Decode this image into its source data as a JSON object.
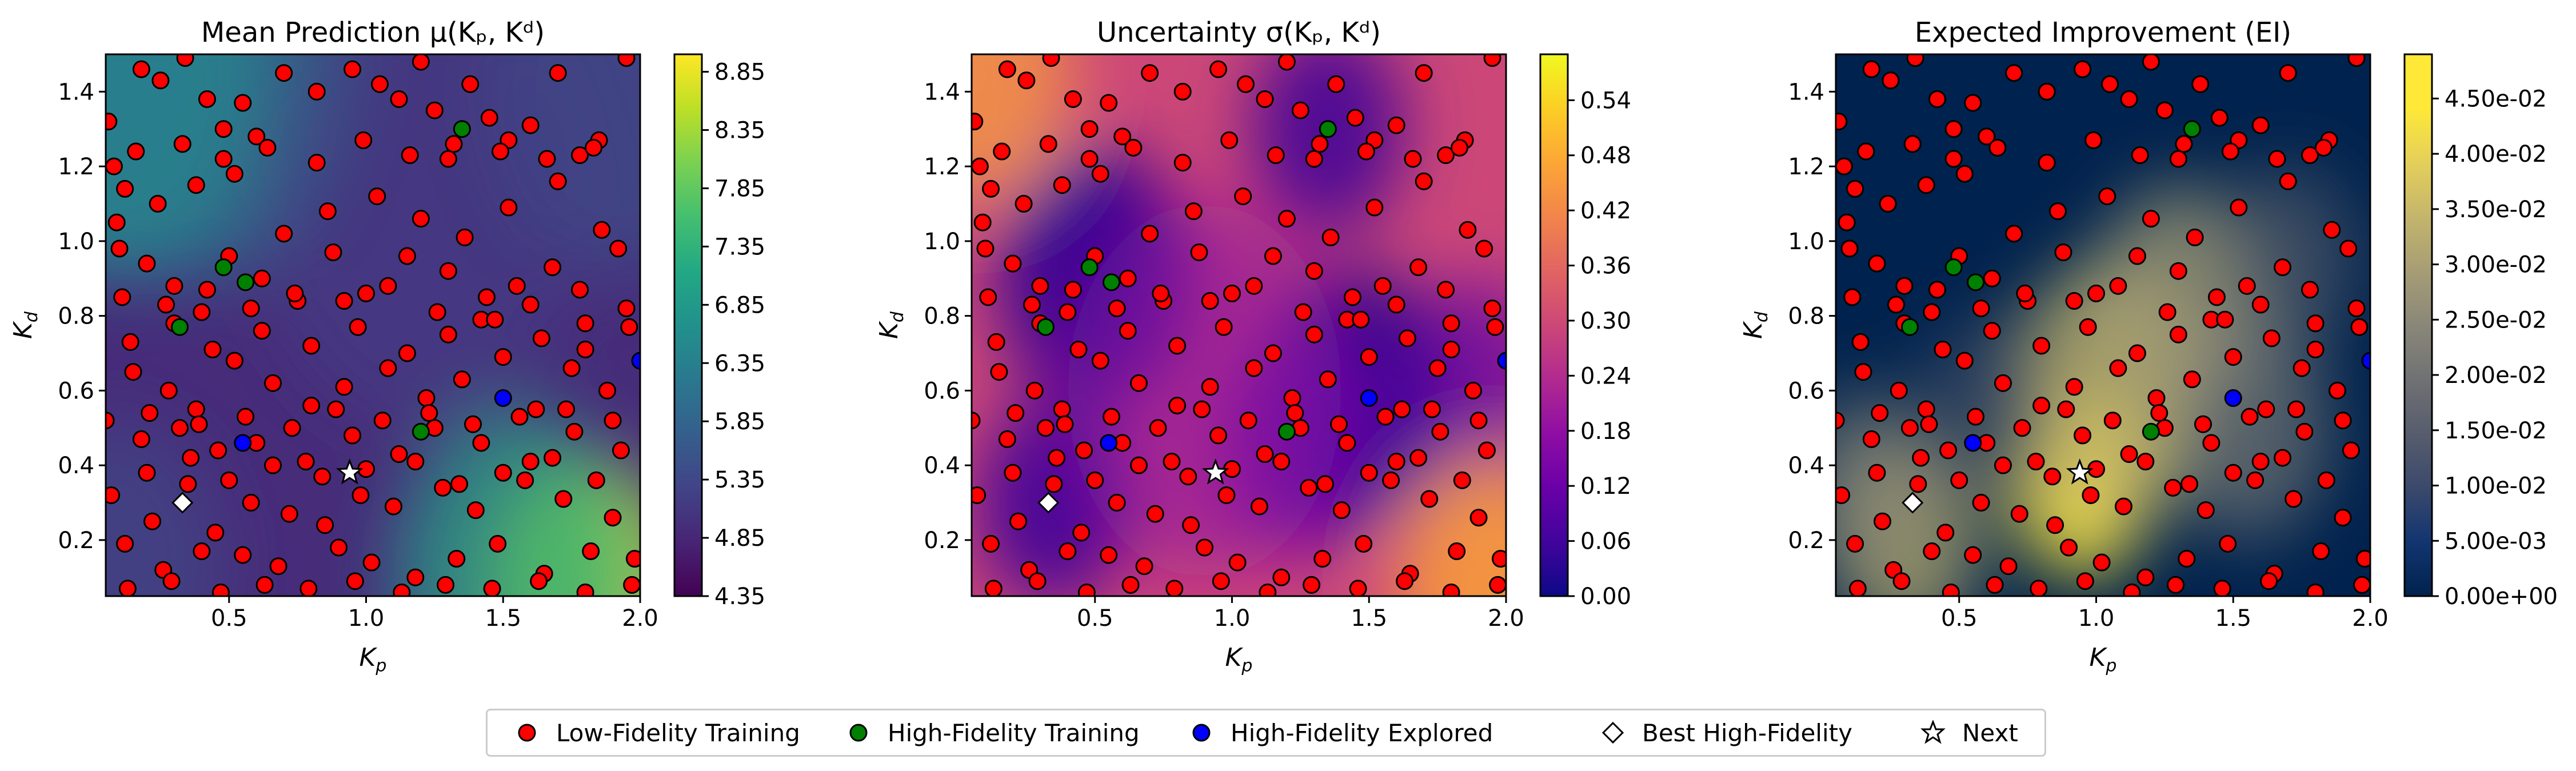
{
  "colors": {
    "low_fidelity": "#ff0000",
    "high_fidelity_training": "#008000",
    "high_fidelity_explored": "#0000ff",
    "marker_edge": "#000000",
    "best": "#ffffff",
    "next": "#ffffff"
  },
  "panels": [
    {
      "title": "Mean Prediction μ(Kₚ, Kᵈ)",
      "colormap": "viridis",
      "colorbar_ticks": [
        "4.35",
        "4.85",
        "5.35",
        "5.85",
        "6.35",
        "6.85",
        "7.35",
        "7.85",
        "8.35",
        "8.85"
      ],
      "colorbar_range": [
        4.35,
        9.0
      ]
    },
    {
      "title": "Uncertainty σ(Kₚ, Kᵈ)",
      "colormap": "plasma",
      "colorbar_ticks": [
        "0.00",
        "0.06",
        "0.12",
        "0.18",
        "0.24",
        "0.30",
        "0.36",
        "0.42",
        "0.48",
        "0.54"
      ],
      "colorbar_range": [
        0.0,
        0.59
      ]
    },
    {
      "title": "Expected Improvement (EI)",
      "colormap": "cividis",
      "colorbar_ticks": [
        "0.00e+00",
        "5.00e-03",
        "1.00e-02",
        "1.50e-02",
        "2.00e-02",
        "2.50e-02",
        "3.00e-02",
        "3.50e-02",
        "4.00e-02",
        "4.50e-02"
      ],
      "colorbar_range": [
        0.0,
        0.049
      ]
    }
  ],
  "axes": {
    "xlabel_main": "K",
    "xlabel_sub": "p",
    "ylabel_main": "K",
    "ylabel_sub": "d",
    "xlim": [
      0.05,
      2.0
    ],
    "ylim": [
      0.05,
      1.5
    ],
    "xticks": [
      "0.5",
      "1.0",
      "1.5",
      "2.0"
    ],
    "yticks": [
      "0.2",
      "0.4",
      "0.6",
      "0.8",
      "1.0",
      "1.2",
      "1.4"
    ]
  },
  "legend": {
    "items": [
      {
        "label": "Low-Fidelity Training",
        "marker": "circle",
        "color": "#ff0000"
      },
      {
        "label": "High-Fidelity Training",
        "marker": "circle",
        "color": "#008000"
      },
      {
        "label": "High-Fidelity Explored",
        "marker": "circle",
        "color": "#0000ff"
      },
      {
        "label": "Best High-Fidelity",
        "marker": "diamond",
        "color": "#ffffff"
      },
      {
        "label": "Next",
        "marker": "star",
        "color": "#ffffff"
      }
    ]
  },
  "chart_data": [
    {
      "type": "heatmap",
      "title": "Mean Prediction μ(Kₚ, Kᵈ)",
      "xlabel": "Kₚ",
      "ylabel": "Kᵈ",
      "xlim": [
        0.05,
        2.0
      ],
      "ylim": [
        0.05,
        1.5
      ],
      "value_range": [
        4.35,
        9.0
      ],
      "series": [
        {
          "name": "Low-Fidelity Training",
          "x": [
            0.06,
            0.08,
            0.12,
            0.18,
            0.25,
            0.34,
            0.42,
            0.48,
            0.55,
            0.6,
            0.7,
            0.82,
            0.95,
            1.05,
            1.12,
            1.2,
            1.25,
            1.3,
            1.38,
            1.45,
            1.52,
            1.6,
            1.7,
            1.78,
            1.85,
            1.95,
            0.1,
            0.2,
            0.3,
            0.4,
            0.5,
            0.62,
            0.75,
            0.88,
            1.0,
            1.15,
            1.3,
            1.42,
            1.55,
            1.68,
            1.8,
            1.92,
            0.15,
            0.28,
            0.38,
            0.52,
            0.66,
            0.8,
            0.92,
            1.08,
            1.22,
            1.35,
            1.5,
            1.62,
            1.75,
            1.88,
            0.07,
            0.22,
            0.35,
            0.45,
            0.58,
            0.72,
            0.85,
            0.98,
            1.1,
            1.28,
            1.4,
            1.58,
            1.72,
            1.9,
            0.12,
            0.26,
            0.4,
            0.55,
            0.68,
            0.9,
            1.02,
            1.18,
            1.33,
            1.48,
            1.65,
            1.82,
            1.98,
            0.18,
            0.32,
            0.46,
            0.6,
            0.78,
            0.95,
            1.12,
            1.25,
            1.42,
            1.6,
            1.76,
            1.93,
            0.09,
            0.24,
            0.38,
            0.52,
            0.7,
            0.86,
            1.04,
            1.2,
            1.36,
            1.52,
            1.7,
            1.86,
            0.14,
            0.3,
            0.44,
            0.62,
            0.8,
            0.97,
            1.15,
            1.3,
            1.47,
            1.64,
            1.8,
            1.96,
            0.2,
            0.36,
            0.5,
            0.66,
            0.84,
            1.0,
            1.18,
            1.34,
            1.5,
            1.68,
            1.84,
            0.11,
            0.27,
            0.42,
            0.58,
            0.74,
            0.92,
            1.08,
            1.26,
            1.44,
            1.6,
            1.78,
            1.95,
            0.16,
            0.33,
            0.48,
            0.64,
            0.82,
            0.99,
            1.16,
            1.32,
            1.49,
            1.66,
            1.83,
            0.05,
            0.21,
            0.39,
            0.56,
            0.73,
            0.89,
            1.06,
            1.23,
            1.39,
            1.56,
            1.73,
            1.9,
            0.13,
            0.29,
            0.47,
            0.63,
            0.79,
            0.96,
            1.13,
            1.29,
            1.46,
            1.63,
            1.8,
            1.97
          ],
          "y": [
            1.32,
            1.2,
            1.14,
            1.46,
            1.43,
            1.49,
            1.38,
            1.3,
            1.37,
            1.28,
            1.45,
            1.4,
            1.46,
            1.42,
            1.38,
            1.48,
            1.35,
            1.22,
            1.42,
            1.33,
            1.27,
            1.31,
            1.45,
            1.23,
            1.27,
            1.49,
            0.98,
            0.94,
            0.88,
            0.81,
            0.96,
            0.9,
            0.84,
            0.97,
            0.86,
            0.96,
            0.92,
            0.79,
            0.88,
            0.93,
            0.78,
            0.98,
            0.65,
            0.6,
            0.55,
            0.68,
            0.62,
            0.56,
            0.61,
            0.66,
            0.58,
            0.63,
            0.69,
            0.55,
            0.66,
            0.6,
            0.32,
            0.25,
            0.35,
            0.22,
            0.3,
            0.27,
            0.24,
            0.32,
            0.29,
            0.34,
            0.28,
            0.36,
            0.31,
            0.26,
            0.19,
            0.12,
            0.17,
            0.16,
            0.13,
            0.18,
            0.14,
            0.1,
            0.15,
            0.19,
            0.11,
            0.17,
            0.15,
            0.47,
            0.5,
            0.44,
            0.46,
            0.41,
            0.48,
            0.43,
            0.5,
            0.46,
            0.41,
            0.49,
            0.44,
            1.05,
            1.1,
            1.15,
            1.18,
            1.02,
            1.08,
            1.12,
            1.06,
            1.01,
            1.09,
            1.16,
            1.03,
            0.73,
            0.78,
            0.71,
            0.76,
            0.72,
            0.77,
            0.7,
            0.75,
            0.79,
            0.74,
            0.71,
            0.77,
            0.38,
            0.42,
            0.36,
            0.4,
            0.37,
            0.39,
            0.41,
            0.35,
            0.38,
            0.42,
            0.36,
            0.85,
            0.83,
            0.87,
            0.82,
            0.86,
            0.84,
            0.88,
            0.81,
            0.85,
            0.83,
            0.87,
            0.82,
            1.24,
            1.26,
            1.22,
            1.25,
            1.21,
            1.27,
            1.23,
            1.26,
            1.24,
            1.22,
            1.25,
            0.52,
            0.54,
            0.51,
            0.53,
            0.5,
            0.55,
            0.52,
            0.54,
            0.51,
            0.53,
            0.55,
            0.52,
            0.07,
            0.09,
            0.06,
            0.08,
            0.07,
            0.09,
            0.06,
            0.08,
            0.07,
            0.09,
            0.06,
            0.08
          ]
        },
        {
          "name": "High-Fidelity Training",
          "x": [
            0.48,
            0.56,
            0.32,
            1.2,
            1.35
          ],
          "y": [
            0.93,
            0.89,
            0.77,
            0.49,
            1.3
          ]
        },
        {
          "name": "High-Fidelity Explored",
          "x": [
            0.55,
            1.5,
            2.0
          ],
          "y": [
            0.46,
            0.58,
            0.68
          ]
        },
        {
          "name": "Best High-Fidelity",
          "x": [
            0.33
          ],
          "y": [
            0.3
          ]
        },
        {
          "name": "Next",
          "x": [
            0.94
          ],
          "y": [
            0.38
          ]
        }
      ]
    },
    {
      "type": "heatmap",
      "title": "Uncertainty σ(Kₚ, Kᵈ)",
      "xlabel": "Kₚ",
      "ylabel": "Kᵈ",
      "xlim": [
        0.05,
        2.0
      ],
      "ylim": [
        0.05,
        1.5
      ],
      "value_range": [
        0.0,
        0.59
      ],
      "series": "same scatter points as panel 1"
    },
    {
      "type": "heatmap",
      "title": "Expected Improvement (EI)",
      "xlabel": "Kₚ",
      "ylabel": "Kᵈ",
      "xlim": [
        0.05,
        2.0
      ],
      "ylim": [
        0.05,
        1.5
      ],
      "value_range": [
        0.0,
        0.049
      ],
      "series": "same scatter points as panel 1"
    }
  ]
}
